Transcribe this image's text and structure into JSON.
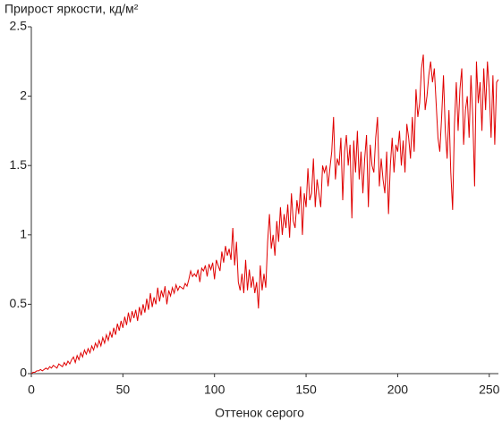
{
  "chart_data": {
    "type": "line",
    "title": "Прирост яркости, кд/м²",
    "x_label": "Оттенок серого",
    "x": [
      0,
      1,
      2,
      3,
      4,
      5,
      6,
      7,
      8,
      9,
      10,
      11,
      12,
      13,
      14,
      15,
      16,
      17,
      18,
      19,
      20,
      21,
      22,
      23,
      24,
      25,
      26,
      27,
      28,
      29,
      30,
      31,
      32,
      33,
      34,
      35,
      36,
      37,
      38,
      39,
      40,
      41,
      42,
      43,
      44,
      45,
      46,
      47,
      48,
      49,
      50,
      51,
      52,
      53,
      54,
      55,
      56,
      57,
      58,
      59,
      60,
      61,
      62,
      63,
      64,
      65,
      66,
      67,
      68,
      69,
      70,
      71,
      72,
      73,
      74,
      75,
      76,
      77,
      78,
      79,
      80,
      81,
      82,
      83,
      84,
      85,
      86,
      87,
      88,
      89,
      90,
      91,
      92,
      93,
      94,
      95,
      96,
      97,
      98,
      99,
      100,
      101,
      102,
      103,
      104,
      105,
      106,
      107,
      108,
      109,
      110,
      111,
      112,
      113,
      114,
      115,
      116,
      117,
      118,
      119,
      120,
      121,
      122,
      123,
      124,
      125,
      126,
      127,
      128,
      129,
      130,
      131,
      132,
      133,
      134,
      135,
      136,
      137,
      138,
      139,
      140,
      141,
      142,
      143,
      144,
      145,
      146,
      147,
      148,
      149,
      150,
      151,
      152,
      153,
      154,
      155,
      156,
      157,
      158,
      159,
      160,
      161,
      162,
      163,
      164,
      165,
      166,
      167,
      168,
      169,
      170,
      171,
      172,
      173,
      174,
      175,
      176,
      177,
      178,
      179,
      180,
      181,
      182,
      183,
      184,
      185,
      186,
      187,
      188,
      189,
      190,
      191,
      192,
      193,
      194,
      195,
      196,
      197,
      198,
      199,
      200,
      201,
      202,
      203,
      204,
      205,
      206,
      207,
      208,
      209,
      210,
      211,
      212,
      213,
      214,
      215,
      216,
      217,
      218,
      219,
      220,
      221,
      222,
      223,
      224,
      225,
      226,
      227,
      228,
      229,
      230,
      231,
      232,
      233,
      234,
      235,
      236,
      237,
      238,
      239,
      240,
      241,
      242,
      243,
      244,
      245,
      246,
      247,
      248,
      249,
      250,
      251,
      252,
      253,
      254,
      255
    ],
    "values": [
      0,
      0.01,
      0.01,
      0.02,
      0.02,
      0.03,
      0.02,
      0.03,
      0.04,
      0.03,
      0.05,
      0.04,
      0.06,
      0.05,
      0.04,
      0.07,
      0.06,
      0.05,
      0.08,
      0.06,
      0.09,
      0.07,
      0.1,
      0.12,
      0.08,
      0.13,
      0.1,
      0.15,
      0.12,
      0.17,
      0.14,
      0.18,
      0.15,
      0.2,
      0.17,
      0.22,
      0.19,
      0.24,
      0.2,
      0.26,
      0.22,
      0.28,
      0.24,
      0.3,
      0.26,
      0.33,
      0.28,
      0.36,
      0.31,
      0.38,
      0.33,
      0.41,
      0.35,
      0.44,
      0.37,
      0.45,
      0.4,
      0.46,
      0.38,
      0.48,
      0.42,
      0.5,
      0.44,
      0.54,
      0.46,
      0.58,
      0.48,
      0.55,
      0.5,
      0.62,
      0.52,
      0.6,
      0.55,
      0.63,
      0.5,
      0.6,
      0.56,
      0.62,
      0.58,
      0.64,
      0.6,
      0.63,
      0.62,
      0.61,
      0.65,
      0.63,
      0.68,
      0.74,
      0.7,
      0.72,
      0.7,
      0.75,
      0.66,
      0.76,
      0.74,
      0.78,
      0.7,
      0.79,
      0.75,
      0.8,
      0.68,
      0.82,
      0.78,
      0.74,
      0.88,
      0.8,
      0.92,
      0.85,
      0.9,
      0.82,
      1.05,
      0.78,
      0.95,
      0.66,
      0.6,
      0.72,
      0.58,
      0.82,
      0.6,
      0.75,
      0.62,
      0.7,
      0.58,
      0.66,
      0.47,
      0.78,
      0.6,
      0.72,
      0.62,
      0.95,
      1.15,
      0.9,
      1.0,
      0.85,
      1.1,
      0.95,
      1.2,
      1.0,
      1.15,
      1.05,
      1.22,
      0.98,
      1.3,
      1.1,
      1.05,
      1.25,
      1.15,
      1.35,
      1.0,
      1.3,
      1.2,
      1.48,
      1.25,
      1.3,
      1.55,
      1.2,
      1.4,
      1.3,
      1.2,
      1.5,
      1.45,
      1.5,
      1.35,
      1.48,
      1.6,
      1.85,
      1.4,
      1.55,
      1.5,
      1.7,
      1.25,
      1.6,
      1.72,
      1.5,
      1.65,
      1.12,
      1.68,
      1.45,
      1.75,
      1.4,
      1.6,
      1.3,
      1.55,
      1.72,
      1.2,
      1.65,
      1.5,
      1.45,
      1.7,
      1.85,
      1.35,
      1.55,
      1.4,
      1.3,
      1.6,
      1.15,
      1.5,
      1.7,
      1.45,
      1.65,
      1.6,
      1.75,
      1.5,
      1.68,
      1.45,
      1.8,
      1.7,
      1.55,
      1.85,
      1.6,
      2.05,
      1.85,
      1.95,
      2.2,
      2.3,
      1.9,
      2.0,
      2.15,
      2.25,
      2.1,
      2.2,
      1.95,
      1.7,
      1.6,
      1.85,
      2.15,
      1.75,
      1.55,
      1.9,
      1.45,
      1.18,
      1.8,
      2.1,
      1.75,
      2.05,
      2.2,
      1.65,
      1.9,
      2.0,
      1.7,
      2.15,
      1.85,
      1.35,
      2.25,
      1.95,
      2.1,
      1.75,
      2.2,
      1.9,
      2.25,
      2.05,
      1.7,
      2.15,
      1.65,
      2.1,
      2.12
    ],
    "color": "#e00000",
    "xlim": [
      0,
      255
    ],
    "xticks": [
      0,
      50,
      100,
      150,
      200,
      250
    ],
    "ylim": [
      0,
      2.5
    ],
    "yticks": [
      0,
      0.5,
      1,
      1.5,
      2,
      2.5
    ],
    "grid": false
  }
}
